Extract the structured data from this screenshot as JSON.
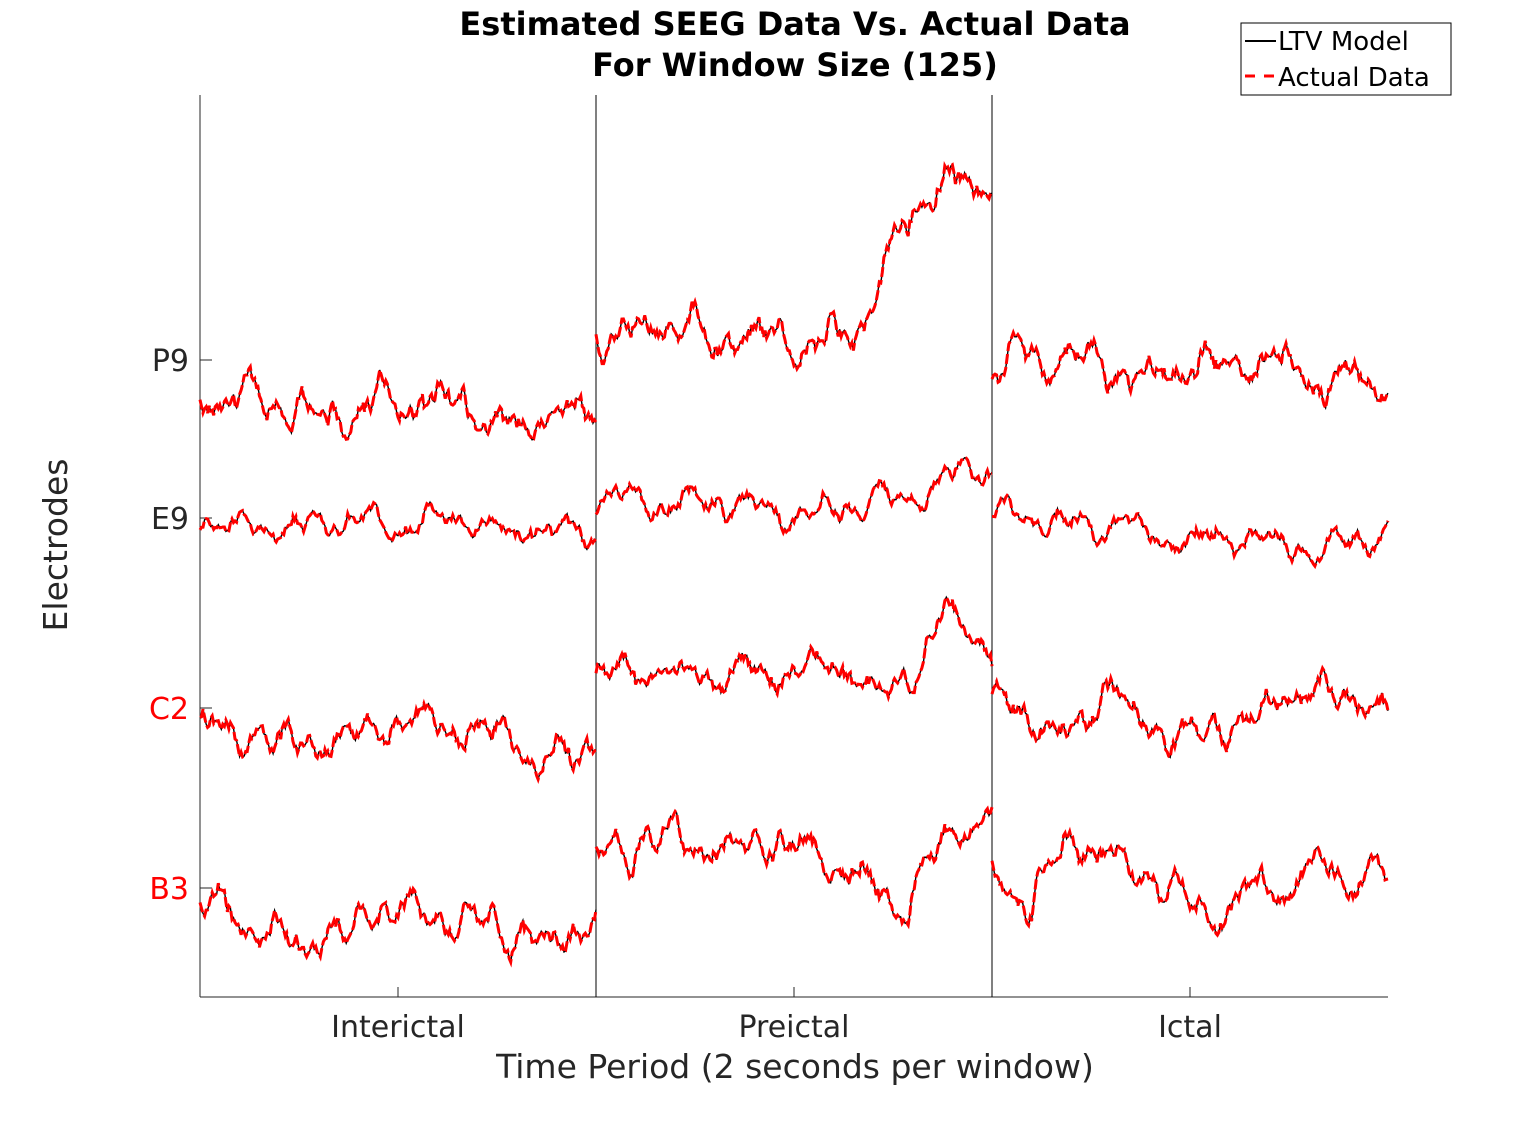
{
  "chart_data": {
    "type": "line",
    "title": [
      "Estimated SEEG Data Vs. Actual Data",
      "For Window Size (125)"
    ],
    "xlabel": "Time Period (2 seconds per window)",
    "ylabel": "Electrodes",
    "categories": [
      "Interictal",
      "Preictal",
      "Ictal"
    ],
    "electrodes": [
      {
        "name": "P9",
        "color": "#262626"
      },
      {
        "name": "E9",
        "color": "#262626"
      },
      {
        "name": "C2",
        "color": "#ff0000"
      },
      {
        "name": "B3",
        "color": "#ff0000"
      }
    ],
    "series": [
      {
        "name": "LTV Model",
        "color": "#000000",
        "style": "solid"
      },
      {
        "name": "Actual Data",
        "color": "#ff0000",
        "style": "dashed"
      }
    ],
    "legend_position": "top-right",
    "grid": false,
    "period_boundaries": true
  }
}
